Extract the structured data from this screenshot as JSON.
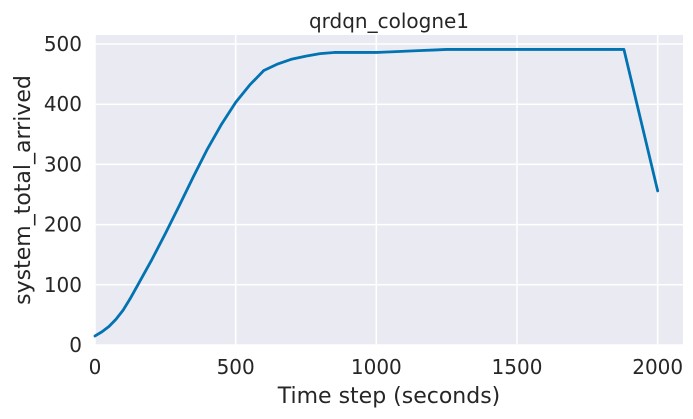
{
  "chart_data": {
    "type": "line",
    "title": "qrdqn_cologne1",
    "xlabel": "Time step (seconds)",
    "ylabel": "system_total_arrived",
    "xlim": [
      0,
      2090
    ],
    "ylim": [
      0,
      515
    ],
    "xticks": [
      0,
      500,
      1000,
      1500,
      2000
    ],
    "yticks": [
      0,
      100,
      200,
      300,
      400,
      500
    ],
    "grid": true,
    "background": "#eaeaf2",
    "series": [
      {
        "color": "#0173b2",
        "x": [
          0,
          25,
          50,
          75,
          100,
          125,
          150,
          200,
          250,
          300,
          350,
          400,
          450,
          500,
          550,
          600,
          650,
          700,
          750,
          800,
          850,
          875,
          900,
          950,
          1000,
          1050,
          1100,
          1150,
          1200,
          1250,
          1300,
          1400,
          1500,
          1600,
          1700,
          1800,
          1880,
          2000
        ],
        "y": [
          15,
          22,
          31,
          43,
          58,
          77,
          98,
          140,
          185,
          232,
          280,
          326,
          367,
          403,
          432,
          456,
          467,
          475,
          480,
          484,
          486,
          486,
          486,
          486,
          486,
          487,
          488,
          489,
          490,
          491,
          491,
          491,
          491,
          491,
          491,
          491,
          491,
          256
        ]
      }
    ]
  }
}
